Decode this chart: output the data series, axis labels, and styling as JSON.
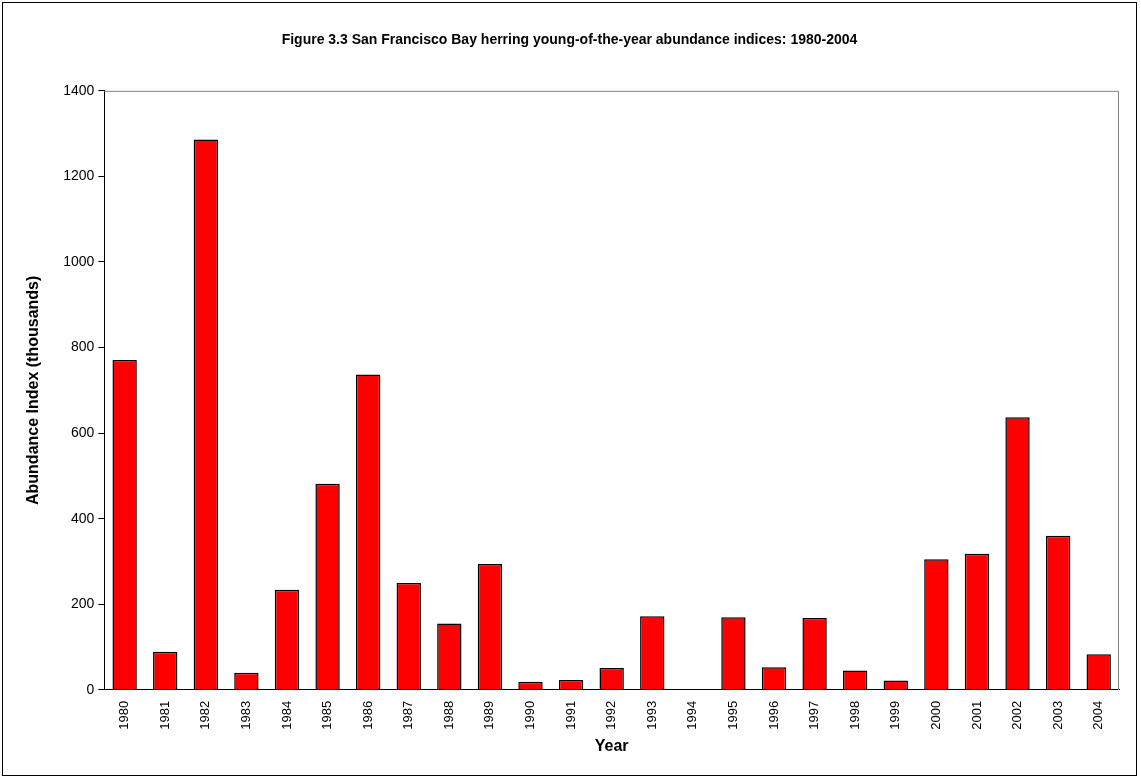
{
  "chart_data": {
    "type": "bar",
    "title": "Figure 3.3 San Francisco Bay herring young-of-the-year abundance indices: 1980-2004",
    "xlabel": "Year",
    "ylabel": "Abundance Index (thousands)",
    "categories": [
      "1980",
      "1981",
      "1982",
      "1983",
      "1984",
      "1985",
      "1986",
      "1987",
      "1988",
      "1989",
      "1990",
      "1991",
      "1992",
      "1993",
      "1994",
      "1995",
      "1996",
      "1997",
      "1998",
      "1999",
      "2000",
      "2001",
      "2002",
      "2003",
      "2004"
    ],
    "values": [
      771,
      89,
      1286,
      40,
      234,
      482,
      737,
      250,
      155,
      294,
      19,
      23,
      51,
      172,
      0,
      170,
      53,
      168,
      45,
      22,
      305,
      318,
      637,
      360,
      83
    ],
    "color": "#ff0000",
    "ylim": [
      0,
      1400
    ],
    "yticks": [
      0,
      200,
      400,
      600,
      800,
      1000,
      1200,
      1400
    ],
    "grid": false,
    "legend": false
  }
}
